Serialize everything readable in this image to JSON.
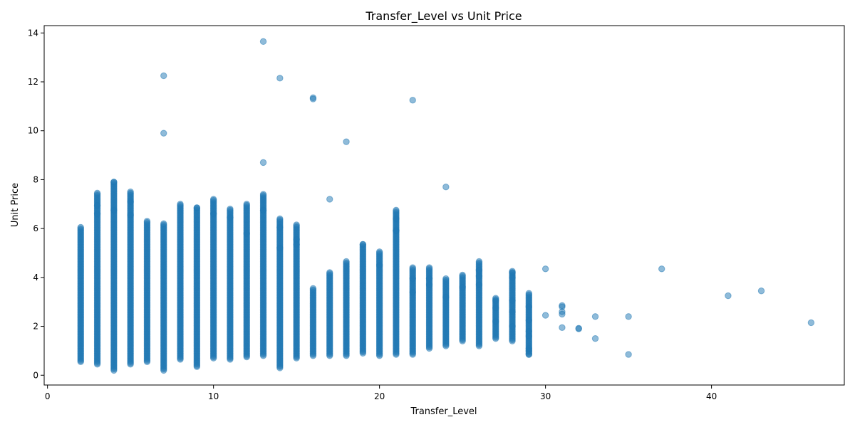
{
  "chart_data": {
    "type": "scatter",
    "title": "Transfer_Level vs Unit Price",
    "xlabel": "Transfer_Level",
    "ylabel": "Unit Price",
    "xlim": [
      -0.2,
      48.0
    ],
    "ylim": [
      -0.4,
      14.3
    ],
    "xticks": [
      0,
      10,
      20,
      30,
      40
    ],
    "yticks": [
      0,
      2,
      4,
      6,
      8,
      10,
      12,
      14
    ],
    "grid": false,
    "legend": "none",
    "marker_color": "#1f77b4",
    "marker_alpha": 0.5,
    "columns": [
      {
        "x": 2,
        "min": 0.55,
        "max": 6.05
      },
      {
        "x": 3,
        "min": 0.45,
        "max": 7.45
      },
      {
        "x": 4,
        "min": 0.2,
        "max": 7.9
      },
      {
        "x": 5,
        "min": 0.45,
        "max": 7.5
      },
      {
        "x": 6,
        "min": 0.55,
        "max": 6.3
      },
      {
        "x": 7,
        "min": 0.2,
        "max": 6.2
      },
      {
        "x": 8,
        "min": 0.65,
        "max": 7.0
      },
      {
        "x": 9,
        "min": 0.35,
        "max": 6.85
      },
      {
        "x": 10,
        "min": 0.7,
        "max": 7.2
      },
      {
        "x": 11,
        "min": 0.65,
        "max": 6.8
      },
      {
        "x": 12,
        "min": 0.75,
        "max": 7.0
      },
      {
        "x": 13,
        "min": 0.8,
        "max": 7.4
      },
      {
        "x": 14,
        "min": 0.3,
        "max": 6.4
      },
      {
        "x": 15,
        "min": 0.7,
        "max": 6.15
      },
      {
        "x": 16,
        "min": 0.8,
        "max": 3.55
      },
      {
        "x": 17,
        "min": 0.8,
        "max": 4.2
      },
      {
        "x": 18,
        "min": 0.8,
        "max": 4.65
      },
      {
        "x": 19,
        "min": 0.9,
        "max": 5.35
      },
      {
        "x": 20,
        "min": 0.8,
        "max": 5.05
      },
      {
        "x": 21,
        "min": 0.85,
        "max": 6.75
      },
      {
        "x": 22,
        "min": 0.85,
        "max": 4.4
      },
      {
        "x": 23,
        "min": 1.1,
        "max": 4.4
      },
      {
        "x": 24,
        "min": 1.2,
        "max": 3.95
      },
      {
        "x": 25,
        "min": 1.4,
        "max": 4.1
      },
      {
        "x": 26,
        "min": 1.2,
        "max": 4.65
      },
      {
        "x": 27,
        "min": 1.5,
        "max": 3.15
      },
      {
        "x": 28,
        "min": 1.4,
        "max": 4.25
      },
      {
        "x": 29,
        "min": 0.85,
        "max": 3.35
      }
    ],
    "points": [
      [
        13,
        13.65
      ],
      [
        7,
        12.25
      ],
      [
        14,
        12.15
      ],
      [
        16,
        11.35
      ],
      [
        16,
        11.3
      ],
      [
        22,
        11.25
      ],
      [
        7,
        9.9
      ],
      [
        18,
        9.55
      ],
      [
        13,
        8.7
      ],
      [
        4,
        7.9
      ],
      [
        24,
        7.7
      ],
      [
        17,
        7.2
      ],
      [
        3,
        6.95
      ],
      [
        5,
        7.1
      ],
      [
        4,
        6.75
      ],
      [
        3,
        6.6
      ],
      [
        5,
        6.55
      ],
      [
        9,
        6.85
      ],
      [
        10,
        6.6
      ],
      [
        11,
        6.45
      ],
      [
        13,
        6.75
      ],
      [
        14,
        6.05
      ],
      [
        21,
        6.4
      ],
      [
        21,
        5.9
      ],
      [
        21,
        5.92
      ],
      [
        19,
        5.35
      ],
      [
        15,
        5.55
      ],
      [
        15,
        5.35
      ],
      [
        12,
        5.8
      ],
      [
        14,
        5.2
      ],
      [
        20,
        4.5
      ],
      [
        22,
        3.95
      ],
      [
        22,
        3.4
      ],
      [
        23,
        3.95
      ],
      [
        23,
        3.7
      ],
      [
        24,
        3.2
      ],
      [
        25,
        3.6
      ],
      [
        26,
        4.3
      ],
      [
        26,
        4.05
      ],
      [
        26,
        3.7
      ],
      [
        27,
        3.05
      ],
      [
        27,
        2.75
      ],
      [
        27,
        2.2
      ],
      [
        28,
        3.05
      ],
      [
        28,
        4.2
      ],
      [
        28,
        4.0
      ],
      [
        28,
        2.6
      ],
      [
        28,
        2.0
      ],
      [
        29,
        2.8
      ],
      [
        29,
        2.25
      ],
      [
        29,
        1.8
      ],
      [
        29,
        1.6
      ],
      [
        29,
        1.1
      ],
      [
        29,
        1.0
      ],
      [
        29,
        0.85
      ],
      [
        30,
        4.35
      ],
      [
        30,
        2.45
      ],
      [
        31,
        2.85
      ],
      [
        31,
        2.8
      ],
      [
        31,
        2.6
      ],
      [
        31,
        2.5
      ],
      [
        31,
        1.95
      ],
      [
        32,
        1.92
      ],
      [
        32,
        1.9
      ],
      [
        33,
        2.4
      ],
      [
        33,
        1.5
      ],
      [
        35,
        2.4
      ],
      [
        35,
        0.85
      ],
      [
        37,
        4.35
      ],
      [
        41,
        3.25
      ],
      [
        43,
        3.45
      ],
      [
        46,
        2.15
      ]
    ]
  }
}
